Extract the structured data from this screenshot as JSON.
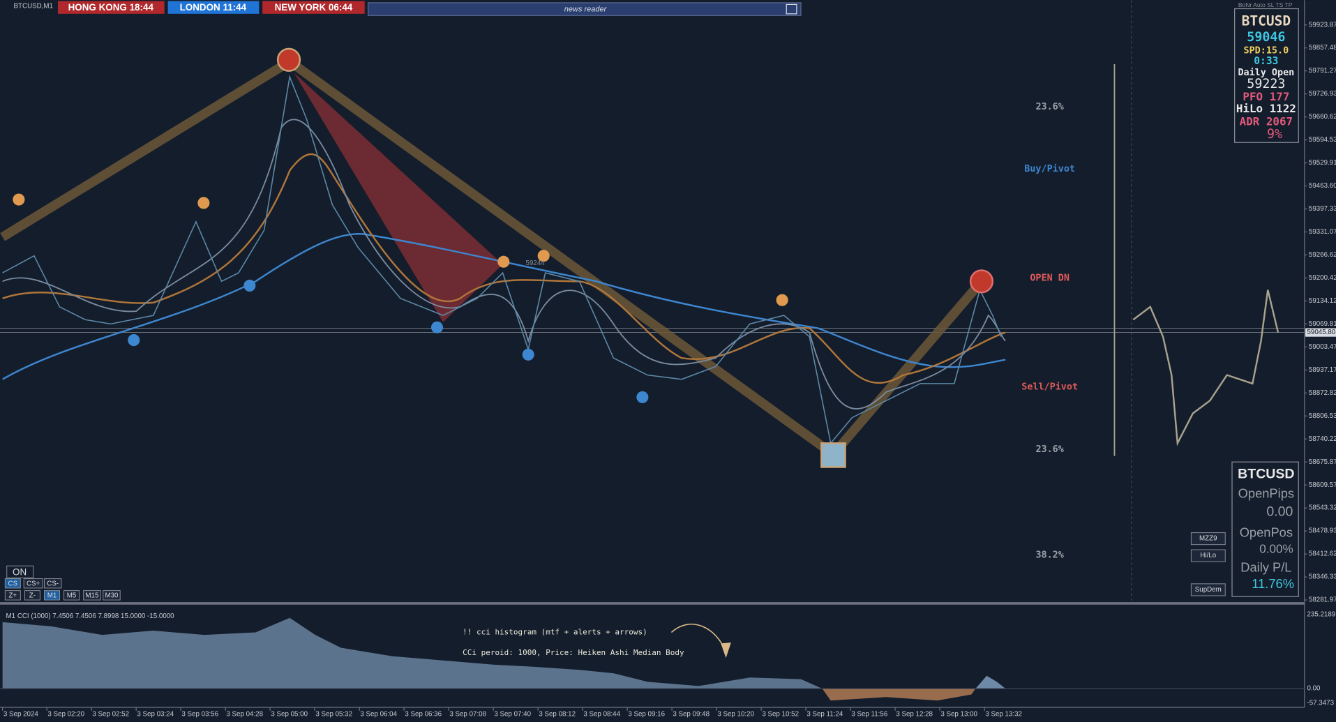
{
  "symbol": "BTCUSD,M1",
  "clocks": [
    "HONG KONG 18:44",
    "LONDON 11:44",
    "NEW YORK 06:44"
  ],
  "news_reader": "news reader",
  "expert": "BoNr Auto SL TS TP",
  "levels": {
    "fib_top": "23.6%",
    "buy_pivot": "Buy/Pivot",
    "open_dn": "OPEN DN",
    "sell_pivot": "Sell/Pivot",
    "fib_bottom": "23.6%",
    "fib_low": "38.2%",
    "marker": "59244"
  },
  "price_axis": [
    "59923.87",
    "59857.48",
    "59791.27",
    "59726.93",
    "59660.62",
    "59594.53",
    "59529.91",
    "59463.60",
    "59397.33",
    "59331.07",
    "59266.62",
    "59200.42",
    "59134.12",
    "59069.81",
    "59003.47",
    "58937.17",
    "58872.82",
    "58806.53",
    "58740.22",
    "58675.87",
    "58609.57",
    "58543.32",
    "58478.93",
    "58412.62",
    "58346.33",
    "58281.97"
  ],
  "current_price": "59045.80",
  "info_panel": {
    "symbol": "BTCUSD",
    "bid": "59046",
    "spread": "SPD:15.0",
    "timer": "0:33",
    "daily_open_label": "Daily Open",
    "daily_open": "59223",
    "pfo": "PFO  177",
    "hilo": "HiLo 1122",
    "adr": "ADR 2067",
    "adr_pct": "9%"
  },
  "pl_panel": {
    "symbol": "BTCUSD",
    "open_pips_label": "OpenPips",
    "open_pips": "0.00",
    "open_pos_label": "OpenPos",
    "open_pos": "0.00%",
    "daily_pl_label": "Daily P/L",
    "daily_pl": "11.76%"
  },
  "side_buttons": [
    "MZZ9",
    "Hi/Lo",
    "SupDem"
  ],
  "on_button": "ON",
  "cs_buttons": [
    "CS",
    "CS+",
    "CS-"
  ],
  "tf_buttons": [
    "Z+",
    "Z-",
    "M1",
    "M5",
    "M15",
    "M30"
  ],
  "indicator": {
    "header": "M1 CCI (1000) 7.4506 7.4506 7.8998 15.0000 -15.0000",
    "note1": "!! cci histogram (mtf + alerts + arrows)",
    "note2": "CCi peroid: 1000, Price: Heiken Ashi Median Body",
    "axis": [
      "235.2189",
      "0.00",
      "-57.3473"
    ]
  },
  "time_axis": [
    "3 Sep 2024",
    "3 Sep 02:20",
    "3 Sep 02:52",
    "3 Sep 03:24",
    "3 Sep 03:56",
    "3 Sep 04:28",
    "3 Sep 05:00",
    "3 Sep 05:32",
    "3 Sep 06:04",
    "3 Sep 06:36",
    "3 Sep 07:08",
    "3 Sep 07:40",
    "3 Sep 08:12",
    "3 Sep 08:44",
    "3 Sep 09:16",
    "3 Sep 09:48",
    "3 Sep 10:20",
    "3 Sep 10:52",
    "3 Sep 11:24",
    "3 Sep 11:56",
    "3 Sep 12:28",
    "3 Sep 13:00",
    "3 Sep 13:32"
  ]
}
